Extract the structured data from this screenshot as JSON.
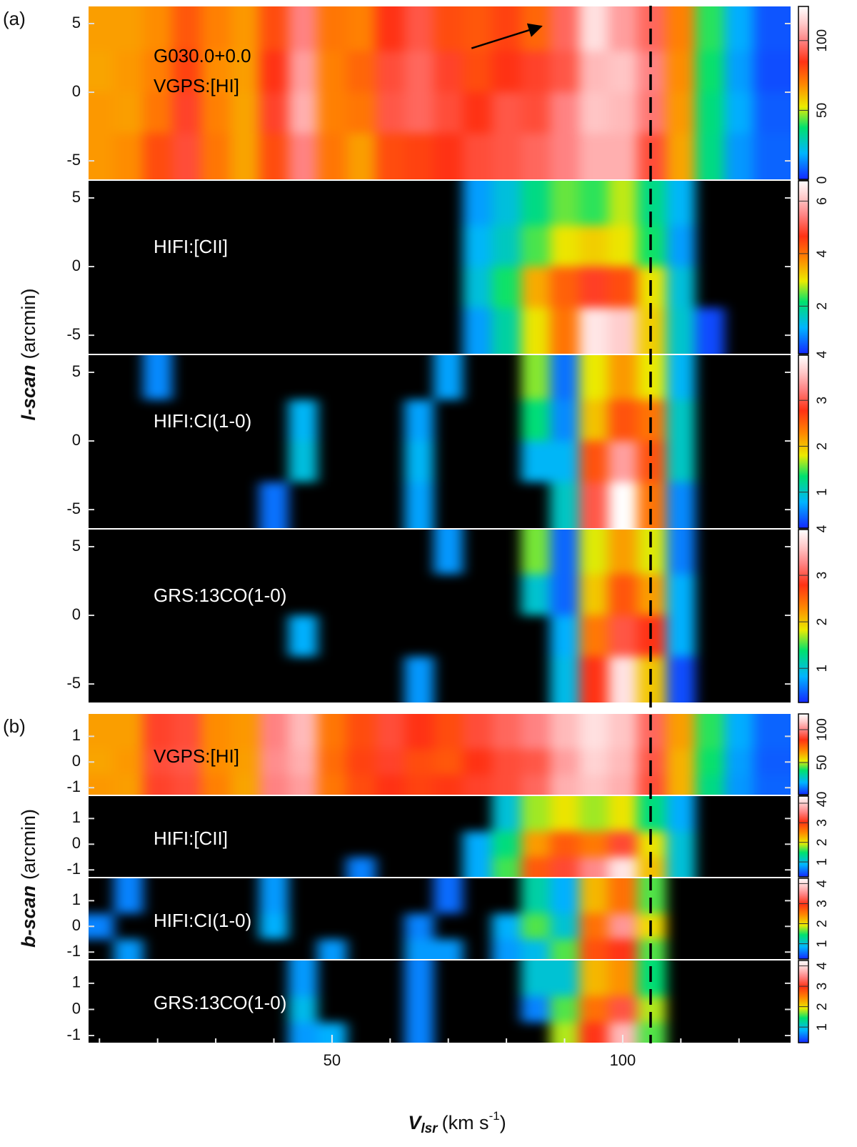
{
  "figure": {
    "groups": [
      {
        "tag": "(a)",
        "ylabel": {
          "name": "l-scan",
          "unit": "(arcmin)"
        }
      },
      {
        "tag": "(b)",
        "ylabel": {
          "name": "b-scan",
          "unit": "(arcmin)"
        }
      }
    ],
    "xlabel": {
      "symbol": "V",
      "subscript": "lsr",
      "unit": "(km s",
      "exponent": "-1",
      "close": ")"
    },
    "xlim": [
      8,
      129
    ],
    "xticks": [
      50,
      100
    ],
    "xticks_minor": [
      10,
      20,
      30,
      40,
      60,
      70,
      80,
      90,
      110,
      120
    ],
    "vline": 104.8
  },
  "chart_data": [
    {
      "type": "heatmap",
      "label": [
        "G030.0+0.0",
        "VGPS:[HI]"
      ],
      "label_color": "#000000",
      "x": [
        10,
        15,
        20,
        25,
        30,
        35,
        40,
        45,
        50,
        55,
        60,
        65,
        70,
        75,
        80,
        85,
        90,
        95,
        100,
        105,
        110,
        115,
        120,
        125
      ],
      "y": [
        4.5,
        1.5,
        -1.5,
        -4.5
      ],
      "ylim": [
        -6.4,
        6.3
      ],
      "yticks": [
        -5,
        0,
        5
      ],
      "zlim": [
        0,
        125
      ],
      "zticks": [
        0,
        50,
        100
      ],
      "arrow": {
        "x": [
          74,
          86
        ],
        "y": [
          3.2,
          4.8
        ]
      },
      "z": [
        [
          65,
          65,
          68,
          78,
          70,
          66,
          80,
          100,
          72,
          70,
          85,
          92,
          80,
          78,
          82,
          75,
          95,
          118,
          105,
          95,
          70,
          40,
          18,
          6
        ],
        [
          64,
          66,
          70,
          82,
          68,
          65,
          85,
          105,
          70,
          75,
          90,
          95,
          88,
          80,
          85,
          88,
          92,
          110,
          112,
          100,
          68,
          38,
          16,
          5
        ],
        [
          66,
          65,
          72,
          88,
          70,
          64,
          88,
          108,
          70,
          72,
          92,
          95,
          90,
          85,
          92,
          90,
          100,
          112,
          110,
          98,
          66,
          36,
          18,
          7
        ],
        [
          66,
          68,
          80,
          90,
          72,
          64,
          80,
          100,
          72,
          65,
          80,
          82,
          85,
          90,
          92,
          95,
          100,
          108,
          108,
          90,
          64,
          35,
          15,
          8
        ]
      ]
    },
    {
      "type": "heatmap",
      "label": [
        "HIFI:[CII]"
      ],
      "label_color": "#ffffff",
      "x": [
        10,
        15,
        20,
        25,
        30,
        35,
        40,
        45,
        50,
        55,
        60,
        65,
        70,
        75,
        80,
        85,
        90,
        95,
        100,
        105,
        110,
        115,
        120,
        125
      ],
      "y": [
        4.5,
        1.5,
        -1.5,
        -4.5
      ],
      "ylim": [
        -6.4,
        6.3
      ],
      "yticks": [
        -5,
        0,
        5
      ],
      "zlim": [
        0.16,
        6.8
      ],
      "zticks": [
        2,
        4,
        6
      ],
      "z": [
        [
          0,
          0,
          0,
          0,
          0,
          0,
          0,
          0,
          0,
          0,
          0,
          0,
          0,
          1.0,
          1.4,
          2.0,
          2.5,
          2.3,
          2.8,
          2.0,
          1.2,
          0,
          0,
          0
        ],
        [
          0,
          0,
          0,
          0,
          0,
          0,
          0,
          0,
          0,
          0,
          0,
          0,
          0,
          1.2,
          1.6,
          2.4,
          3.0,
          3.2,
          3.0,
          2.2,
          1.0,
          0,
          0,
          0
        ],
        [
          0,
          0,
          0,
          0,
          0,
          0,
          0,
          0,
          0,
          0,
          0,
          0,
          0,
          1.4,
          2.2,
          3.5,
          4.2,
          4.8,
          4.4,
          3.0,
          1.4,
          0,
          0,
          0
        ],
        [
          0,
          0,
          0,
          0,
          0,
          0,
          0,
          0,
          0,
          0,
          0,
          0,
          0,
          1.0,
          1.8,
          3.0,
          4.0,
          6.5,
          6.2,
          3.2,
          1.5,
          0.4,
          0,
          0
        ]
      ]
    },
    {
      "type": "heatmap",
      "label": [
        "HIFI:CI(1-0)"
      ],
      "label_color": "#ffffff",
      "x": [
        10,
        15,
        20,
        25,
        30,
        35,
        40,
        45,
        50,
        55,
        60,
        65,
        70,
        75,
        80,
        85,
        90,
        95,
        100,
        105,
        110,
        115,
        120,
        125
      ],
      "y": [
        4.5,
        1.5,
        -1.5,
        -4.5
      ],
      "ylim": [
        -6.4,
        6.3
      ],
      "yticks": [
        -5,
        0,
        5
      ],
      "zlim": [
        0.2,
        4
      ],
      "zticks": [
        1,
        2,
        3,
        4
      ],
      "z": [
        [
          0,
          0,
          0.6,
          0,
          0,
          0,
          0,
          0,
          0,
          0,
          0,
          0,
          0.7,
          0,
          0,
          1.6,
          0.5,
          1.8,
          2.2,
          1.8,
          0.8,
          0,
          0,
          0
        ],
        [
          0,
          0,
          0,
          0,
          0,
          0,
          0,
          0.8,
          0,
          0,
          0,
          0.7,
          0,
          0,
          0,
          1.3,
          0.6,
          2.0,
          2.6,
          2.4,
          1.0,
          0,
          0,
          0
        ],
        [
          0,
          0,
          0,
          0,
          0,
          0,
          0,
          0.9,
          0,
          0,
          0,
          0.8,
          0,
          0,
          0,
          0.8,
          0.8,
          2.6,
          3.4,
          2.6,
          1.0,
          0,
          0,
          0
        ],
        [
          0,
          0,
          0,
          0,
          0,
          0,
          0.5,
          0,
          0,
          0,
          0,
          0.7,
          0,
          0,
          0,
          0,
          1.0,
          3.0,
          4.0,
          2.4,
          0.6,
          0,
          0,
          0
        ]
      ]
    },
    {
      "type": "heatmap",
      "label": [
        "GRS:13CO(1-0)"
      ],
      "label_color": "#ffffff",
      "x": [
        10,
        15,
        20,
        25,
        30,
        35,
        40,
        45,
        50,
        55,
        60,
        65,
        70,
        75,
        80,
        85,
        90,
        95,
        100,
        105,
        110,
        115,
        120,
        125
      ],
      "y": [
        4.5,
        1.5,
        -1.5,
        -4.5
      ],
      "ylim": [
        -6.4,
        6.3
      ],
      "yticks": [
        -5,
        0,
        5
      ],
      "zlim": [
        0.25,
        4
      ],
      "zticks": [
        1,
        2,
        3,
        4
      ],
      "z": [
        [
          0,
          0,
          0,
          0,
          0,
          0,
          0,
          0,
          0,
          0,
          0,
          0,
          0.7,
          0,
          0,
          1.6,
          0.5,
          1.8,
          2.2,
          1.8,
          0.6,
          0,
          0,
          0
        ],
        [
          0,
          0,
          0,
          0,
          0,
          0,
          0,
          0,
          0,
          0,
          0,
          0,
          0,
          0,
          0,
          1.0,
          0.5,
          2.0,
          2.6,
          2.2,
          0.8,
          0,
          0,
          0
        ],
        [
          0,
          0,
          0,
          0,
          0,
          0,
          0,
          0.8,
          0,
          0,
          0,
          0,
          0,
          0,
          0,
          0,
          0.8,
          2.4,
          3.0,
          2.8,
          0.8,
          0,
          0,
          0
        ],
        [
          0,
          0,
          0,
          0,
          0,
          0,
          0,
          0,
          0,
          0,
          0,
          0.7,
          0,
          0,
          0,
          0,
          0.9,
          2.8,
          3.8,
          2.0,
          0.4,
          0,
          0,
          0
        ]
      ]
    },
    {
      "type": "heatmap",
      "label": [
        "VGPS:[HI]"
      ],
      "label_color": "#000000",
      "x": [
        10,
        15,
        20,
        25,
        30,
        35,
        40,
        45,
        50,
        55,
        60,
        65,
        70,
        75,
        80,
        85,
        90,
        95,
        100,
        105,
        110,
        115,
        120,
        125
      ],
      "y": [
        1,
        0,
        -1
      ],
      "ylim": [
        -1.3,
        1.9
      ],
      "yticks": [
        -1,
        0,
        1
      ],
      "zlim": [
        0,
        125
      ],
      "zticks": [
        0,
        50,
        100
      ],
      "z": [
        [
          65,
          65,
          88,
          90,
          68,
          66,
          100,
          110,
          72,
          80,
          90,
          85,
          80,
          90,
          95,
          100,
          110,
          118,
          112,
          95,
          65,
          40,
          18,
          8
        ],
        [
          64,
          66,
          90,
          92,
          68,
          65,
          102,
          108,
          74,
          82,
          88,
          80,
          78,
          85,
          90,
          92,
          105,
          115,
          110,
          92,
          62,
          38,
          16,
          7
        ],
        [
          66,
          65,
          88,
          90,
          70,
          64,
          100,
          105,
          72,
          80,
          85,
          82,
          84,
          88,
          90,
          95,
          108,
          112,
          108,
          90,
          62,
          35,
          15,
          8
        ]
      ]
    },
    {
      "type": "heatmap",
      "label": [
        "HIFI:[CII]"
      ],
      "label_color": "#ffffff",
      "x": [
        10,
        15,
        20,
        25,
        30,
        35,
        40,
        45,
        50,
        55,
        60,
        65,
        70,
        75,
        80,
        85,
        90,
        95,
        100,
        105,
        110,
        115,
        120,
        125
      ],
      "y": [
        1,
        0,
        -1
      ],
      "ylim": [
        -1.3,
        1.9
      ],
      "yticks": [
        -1,
        0,
        1
      ],
      "zlim": [
        0.2,
        4.4
      ],
      "zticks": [
        1,
        2,
        3,
        4
      ],
      "z": [
        [
          0,
          0,
          0,
          0,
          0,
          0,
          0,
          0,
          0,
          0,
          0,
          0,
          0,
          0,
          1.0,
          1.8,
          2.0,
          1.8,
          2.0,
          1.4,
          0.8,
          0,
          0,
          0
        ],
        [
          0,
          0,
          0,
          0,
          0,
          0,
          0,
          0,
          0,
          0,
          0,
          0,
          0,
          0.8,
          1.4,
          2.4,
          2.8,
          2.6,
          3.2,
          2.0,
          1.0,
          0,
          0,
          0
        ],
        [
          0,
          0,
          0,
          0,
          0,
          0,
          0,
          0,
          0,
          0.6,
          0,
          0,
          0,
          0.8,
          1.6,
          2.8,
          3.2,
          3.6,
          4.2,
          2.2,
          1.0,
          0,
          0,
          0
        ]
      ]
    },
    {
      "type": "heatmap",
      "label": [
        "HIFI:CI(1-0)"
      ],
      "label_color": "#ffffff",
      "x": [
        10,
        15,
        20,
        25,
        30,
        35,
        40,
        45,
        50,
        55,
        60,
        65,
        70,
        75,
        80,
        85,
        90,
        95,
        100,
        105,
        110,
        115,
        120,
        125
      ],
      "y": [
        1,
        0,
        -1
      ],
      "ylim": [
        -1.3,
        1.9
      ],
      "yticks": [
        -1,
        0,
        1
      ],
      "zlim": [
        0.2,
        4.3
      ],
      "zticks": [
        1,
        2,
        3,
        4
      ],
      "z": [
        [
          0,
          0.6,
          0,
          0,
          0,
          0,
          0.7,
          0,
          0,
          0,
          0,
          0,
          0.5,
          0,
          0,
          1.2,
          0.8,
          2.2,
          2.6,
          1.6,
          0,
          0,
          0,
          0
        ],
        [
          0.6,
          0,
          0,
          0,
          0,
          0,
          0.8,
          0,
          0,
          0,
          0,
          0.6,
          0,
          0,
          0.8,
          1.6,
          1.0,
          2.6,
          3.6,
          2.0,
          0,
          0,
          0,
          0
        ],
        [
          0,
          0.7,
          0,
          0,
          0,
          0,
          0,
          0,
          0.7,
          0,
          0,
          0.7,
          0.7,
          0,
          0.7,
          0.9,
          1.6,
          2.8,
          3.0,
          1.6,
          0,
          0,
          0,
          0
        ]
      ]
    },
    {
      "type": "heatmap",
      "label": [
        "GRS:13CO(1-0)"
      ],
      "label_color": "#ffffff",
      "x": [
        10,
        15,
        20,
        25,
        30,
        35,
        40,
        45,
        50,
        55,
        60,
        65,
        70,
        75,
        80,
        85,
        90,
        95,
        100,
        105,
        110,
        115,
        120,
        125
      ],
      "y": [
        1,
        0,
        -1
      ],
      "ylim": [
        -1.3,
        1.9
      ],
      "yticks": [
        -1,
        0,
        1
      ],
      "zlim": [
        0.2,
        4.3
      ],
      "zticks": [
        1,
        2,
        3,
        4
      ],
      "z": [
        [
          0,
          0,
          0,
          0,
          0,
          0,
          0,
          0.7,
          0,
          0,
          0,
          0.6,
          0,
          0,
          0,
          1.0,
          1.0,
          2.2,
          2.4,
          1.4,
          0,
          0,
          0,
          0
        ],
        [
          0,
          0,
          0,
          0,
          0,
          0,
          0,
          0.9,
          0,
          0,
          0,
          0.6,
          0,
          0,
          0,
          0.6,
          1.6,
          2.6,
          3.2,
          1.8,
          0,
          0,
          0,
          0
        ],
        [
          0,
          0,
          0,
          0,
          0,
          0,
          0,
          0.7,
          0.8,
          0,
          0,
          0.6,
          0,
          0,
          0,
          0,
          1.8,
          3.0,
          3.8,
          1.6,
          0,
          0,
          0,
          0
        ]
      ]
    }
  ]
}
